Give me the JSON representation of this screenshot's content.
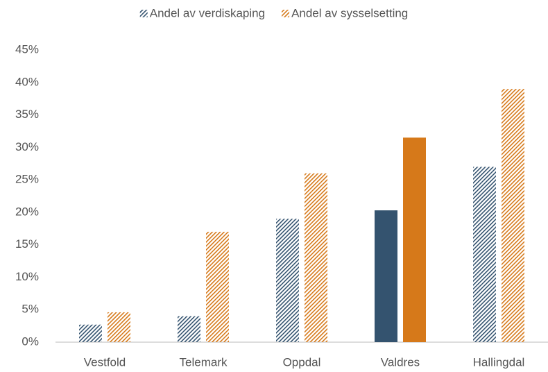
{
  "chart_data": {
    "type": "bar",
    "categories": [
      "Vestfold",
      "Telemark",
      "Oppdal",
      "Valdres",
      "Hallingdal"
    ],
    "series": [
      {
        "name": "Andel av verdiskaping",
        "color": "#34536f",
        "values": [
          2.7,
          4.0,
          19.0,
          20.3,
          27.0
        ]
      },
      {
        "name": "Andel av sysselsetting",
        "color": "#d6791a",
        "values": [
          4.6,
          17.0,
          26.0,
          31.5,
          39.0
        ]
      }
    ],
    "solid_category": "Valdres",
    "ylim": [
      0,
      45
    ],
    "yticks": [
      {
        "value": 0,
        "label": "0%"
      },
      {
        "value": 5,
        "label": "5%"
      },
      {
        "value": 10,
        "label": "10%"
      },
      {
        "value": 15,
        "label": "15%"
      },
      {
        "value": 20,
        "label": "20%"
      },
      {
        "value": 25,
        "label": "25%"
      },
      {
        "value": 30,
        "label": "30%"
      },
      {
        "value": 35,
        "label": "35%"
      },
      {
        "value": 40,
        "label": "40%"
      },
      {
        "value": 45,
        "label": "45%"
      }
    ],
    "grid": false,
    "legend": "top"
  }
}
